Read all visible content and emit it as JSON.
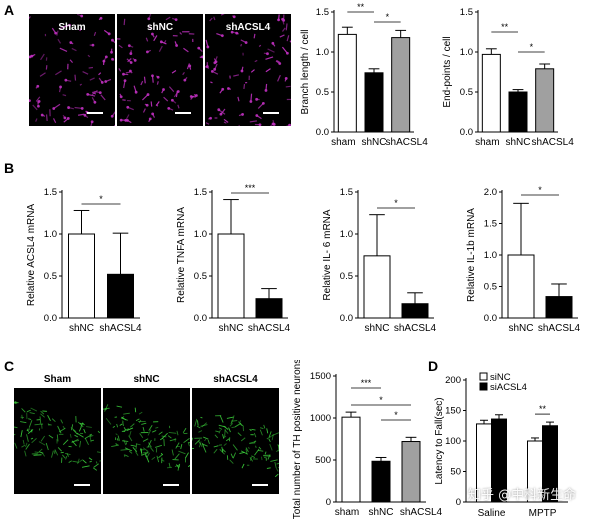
{
  "panels": {
    "a": "A",
    "b": "B",
    "c": "C",
    "d": "D"
  },
  "micrographs_a": {
    "labels": [
      "Sham",
      "shNC",
      "shACSL4"
    ],
    "stain_color": "#c030c0"
  },
  "micrographs_c": {
    "labels": [
      "Sham",
      "shNC",
      "shACSL4"
    ],
    "stain_color": "#3cd23c"
  },
  "watermark": "知乎 @中科新生命",
  "chart_data": [
    {
      "id": "a1",
      "type": "bar",
      "categories": [
        "sham",
        "shNC",
        "shACSL4"
      ],
      "values": [
        1.22,
        0.74,
        1.18
      ],
      "errors": [
        0.09,
        0.05,
        0.09
      ],
      "colors": [
        "#ffffff",
        "#000000",
        "#a0a0a0"
      ],
      "ylabel": "Branch length / cell",
      "ylim": [
        0,
        1.5
      ],
      "yticks": [
        0.0,
        0.5,
        1.0,
        1.5
      ],
      "tick_labels": [
        "0.0",
        "0.5",
        "1.0",
        "1.5"
      ],
      "sig": [
        {
          "from": 0,
          "to": 1,
          "label": "**"
        },
        {
          "from": 1,
          "to": 2,
          "label": "*"
        }
      ]
    },
    {
      "id": "a2",
      "type": "bar",
      "categories": [
        "sham",
        "shNC",
        "shACSL4"
      ],
      "values": [
        0.97,
        0.5,
        0.79
      ],
      "errors": [
        0.07,
        0.03,
        0.06
      ],
      "colors": [
        "#ffffff",
        "#000000",
        "#a0a0a0"
      ],
      "ylabel": "End-points / cell",
      "ylim": [
        0,
        1.5
      ],
      "yticks": [
        0.0,
        0.5,
        1.0,
        1.5
      ],
      "tick_labels": [
        "0.0",
        "0.5",
        "1.0",
        "1.5"
      ],
      "sig": [
        {
          "from": 0,
          "to": 1,
          "label": "**"
        },
        {
          "from": 1,
          "to": 2,
          "label": "*"
        }
      ]
    },
    {
      "id": "b1",
      "type": "bar",
      "categories": [
        "shNC",
        "shACSL4"
      ],
      "values": [
        1.0,
        0.52
      ],
      "errors": [
        0.28,
        0.49
      ],
      "colors": [
        "#ffffff",
        "#000000"
      ],
      "ylabel": "Relative ACSL4 mRNA",
      "ylim": [
        0,
        1.5
      ],
      "yticks": [
        0.0,
        0.5,
        1.0,
        1.5
      ],
      "tick_labels": [
        "0.0",
        "0.5",
        "1.0",
        "1.5"
      ],
      "sig": [
        {
          "from": 0,
          "to": 1,
          "label": "*"
        }
      ]
    },
    {
      "id": "b2",
      "type": "bar",
      "categories": [
        "shNC",
        "shACSL4"
      ],
      "values": [
        1.0,
        0.23
      ],
      "errors": [
        0.41,
        0.12
      ],
      "colors": [
        "#ffffff",
        "#000000"
      ],
      "ylabel": "Relative TNFA mRNA",
      "ylim": [
        0,
        1.5
      ],
      "yticks": [
        0.0,
        0.5,
        1.0,
        1.5
      ],
      "tick_labels": [
        "0.0",
        "0.5",
        "1.0",
        "1.5"
      ],
      "sig": [
        {
          "from": 0,
          "to": 1,
          "label": "***"
        }
      ]
    },
    {
      "id": "b3",
      "type": "bar",
      "categories": [
        "shNC",
        "shACSL4"
      ],
      "values": [
        0.74,
        0.17
      ],
      "errors": [
        0.49,
        0.13
      ],
      "colors": [
        "#ffffff",
        "#000000"
      ],
      "ylabel": "Relative IL- 6 mRNA",
      "ylim": [
        0,
        1.5
      ],
      "yticks": [
        0.0,
        0.5,
        1.0,
        1.5
      ],
      "tick_labels": [
        "0.0",
        "0.5",
        "1.0",
        "1.5"
      ],
      "sig": [
        {
          "from": 0,
          "to": 1,
          "label": "*"
        }
      ]
    },
    {
      "id": "b4",
      "type": "bar",
      "categories": [
        "shNC",
        "shACSL4"
      ],
      "values": [
        1.0,
        0.34
      ],
      "errors": [
        0.82,
        0.2
      ],
      "colors": [
        "#ffffff",
        "#000000"
      ],
      "ylabel": "Relative IL-1b mRNA",
      "ylim": [
        0,
        2.0
      ],
      "yticks": [
        0.0,
        0.5,
        1.0,
        1.5,
        2.0
      ],
      "tick_labels": [
        "0.0",
        "0.5",
        "1.0",
        "1.5",
        "2.0"
      ],
      "sig": [
        {
          "from": 0,
          "to": 1,
          "label": "*"
        }
      ]
    },
    {
      "id": "c1",
      "type": "bar",
      "categories": [
        "sham",
        "shNC",
        "shACSL4"
      ],
      "values": [
        1010,
        485,
        720
      ],
      "errors": [
        60,
        45,
        50
      ],
      "colors": [
        "#ffffff",
        "#000000",
        "#a0a0a0"
      ],
      "ylabel": "Total number of TH positive neurons",
      "ylim": [
        0,
        1500
      ],
      "yticks": [
        0,
        500,
        1000,
        1500
      ],
      "tick_labels": [
        "0",
        "500",
        "1000",
        "1500"
      ],
      "sig": [
        {
          "from": 0,
          "to": 1,
          "label": "***"
        },
        {
          "from": 0,
          "to": 2,
          "label": "*"
        },
        {
          "from": 1,
          "to": 2,
          "label": "*"
        }
      ]
    },
    {
      "id": "d1",
      "type": "bar",
      "categories": [
        "Saline",
        "MPTP"
      ],
      "series": [
        {
          "name": "siNC",
          "values": [
            128,
            100
          ],
          "errors": [
            6,
            5
          ],
          "color": "#ffffff"
        },
        {
          "name": "siACSL4",
          "values": [
            136,
            125
          ],
          "errors": [
            7,
            6
          ],
          "color": "#000000"
        }
      ],
      "ylabel": "Latency to Fall(sec)",
      "ylim": [
        0,
        200
      ],
      "yticks": [
        0,
        50,
        100,
        150,
        200
      ],
      "tick_labels": [
        "0",
        "50",
        "100",
        "150",
        "200"
      ],
      "legend": "top-left",
      "sig": [
        {
          "category": 1,
          "label": "**"
        }
      ]
    }
  ]
}
